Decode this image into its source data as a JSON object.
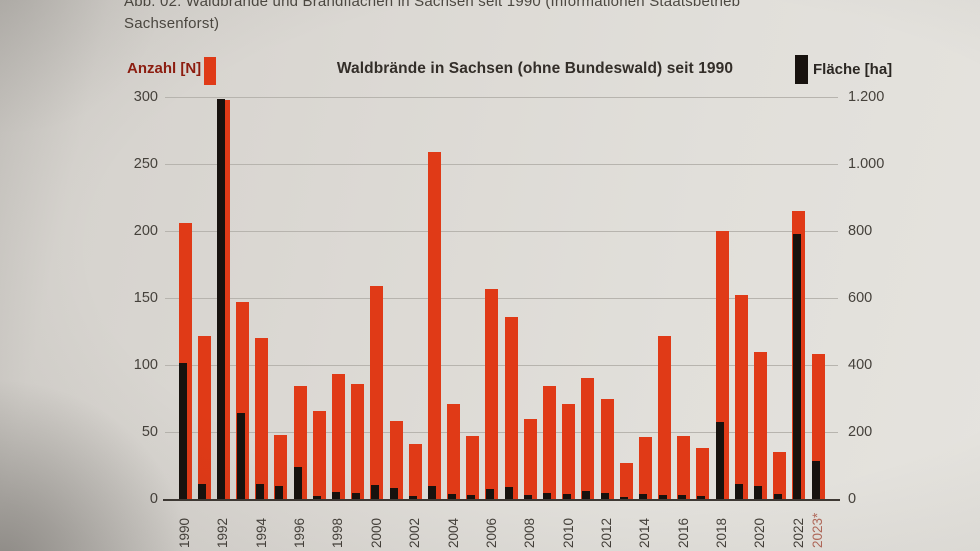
{
  "caption": "Abb. 02: Waldbrände und Brandflächen in Sachsen seit 1990 (Informationen Staatsbetrieb Sachsenforst)",
  "title": "Waldbrände in Sachsen (ohne Bundeswald) seit 1990",
  "legend_left": {
    "label": "Anzahl [N]",
    "color": "#e03a17"
  },
  "legend_right": {
    "label": "Fläche [ha]",
    "color": "#17120e"
  },
  "colors": {
    "paper": "#dcd9d4",
    "bar_red": "#e03a17",
    "bar_black": "#17120e",
    "gridline": "#b7b4ae",
    "axis_text": "#45413b",
    "provisional_year": "#b2695a"
  },
  "chart_data": {
    "type": "bar",
    "title": "Waldbrände in Sachsen (ohne Bundeswald) seit 1990",
    "categories": [
      1990,
      1991,
      1992,
      1993,
      1994,
      1995,
      1996,
      1997,
      1998,
      1999,
      2000,
      2001,
      2002,
      2003,
      2004,
      2005,
      2006,
      2007,
      2008,
      2009,
      2010,
      2011,
      2012,
      2013,
      2014,
      2015,
      2016,
      2017,
      2018,
      2019,
      2020,
      2021,
      2022,
      2023
    ],
    "x_tick_labels": [
      "1990",
      "1992",
      "1994",
      "1996",
      "1998",
      "2000",
      "2002",
      "2004",
      "2006",
      "2008",
      "2010",
      "2012",
      "2014",
      "2016",
      "2018",
      "2020",
      "2022",
      "2023*"
    ],
    "series": [
      {
        "name": "Anzahl [N]",
        "axis": "left",
        "color": "#e03a17",
        "values": [
          206,
          122,
          298,
          147,
          120,
          48,
          84,
          66,
          93,
          86,
          159,
          58,
          41,
          259,
          71,
          47,
          157,
          136,
          60,
          84,
          71,
          90,
          75,
          27,
          46,
          122,
          47,
          38,
          200,
          152,
          110,
          35,
          215,
          108
        ]
      },
      {
        "name": "Fläche [ha]",
        "axis": "right",
        "color": "#17120e",
        "values": [
          405,
          45,
          1195,
          258,
          45,
          40,
          95,
          10,
          20,
          18,
          42,
          32,
          8,
          40,
          15,
          12,
          30,
          35,
          13,
          17,
          15,
          23,
          17,
          7,
          15,
          13,
          12,
          10,
          230,
          45,
          38,
          15,
          790,
          112
        ]
      }
    ],
    "left_axis": {
      "label": "Anzahl [N]",
      "min": 0,
      "max": 300,
      "step": 50,
      "ticks": [
        "0",
        "50",
        "100",
        "150",
        "200",
        "250",
        "300"
      ]
    },
    "right_axis": {
      "label": "Fläche [ha]",
      "min": 0,
      "max": 1200,
      "step": 200,
      "ticks": [
        "0",
        "200",
        "400",
        "600",
        "800",
        "1.000",
        "1.200"
      ]
    },
    "grid": true,
    "legend_position": "top"
  }
}
